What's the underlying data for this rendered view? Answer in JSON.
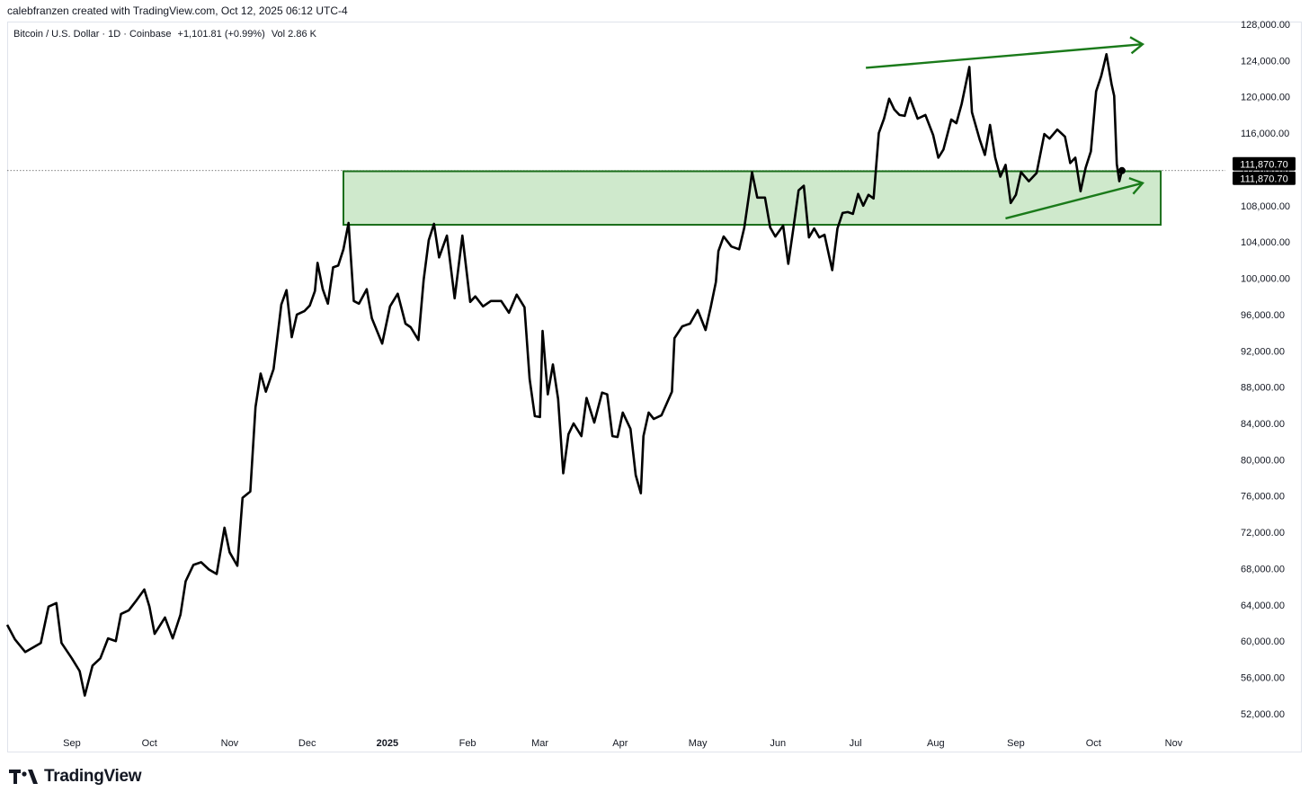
{
  "header": {
    "credit": "calebfranzen created with TradingView.com, Oct 12, 2025 06:12 UTC-4"
  },
  "legend": {
    "symbol": "Bitcoin / U.S. Dollar · 1D · Coinbase",
    "change": "+1,101.81 (+0.99%)",
    "volume": "Vol 2.86 K"
  },
  "branding": {
    "logo_text": "TradingView"
  },
  "colors": {
    "line": "#000000",
    "zone_fill": "#cfe9cc",
    "zone_border": "#1a6e1a",
    "arrow": "#1a7a1a",
    "price_tag": "#000000"
  },
  "chart_data": {
    "type": "line",
    "title": "",
    "xlabel": "",
    "ylabel": "",
    "x_axis_ticks": [
      {
        "label": "Sep",
        "date": "2024-09-01"
      },
      {
        "label": "Oct",
        "date": "2024-10-01"
      },
      {
        "label": "Nov",
        "date": "2024-11-01"
      },
      {
        "label": "Dec",
        "date": "2024-12-01"
      },
      {
        "label": "2025",
        "date": "2025-01-01",
        "bold": true
      },
      {
        "label": "Feb",
        "date": "2025-02-01"
      },
      {
        "label": "Mar",
        "date": "2025-03-01"
      },
      {
        "label": "Apr",
        "date": "2025-04-01"
      },
      {
        "label": "May",
        "date": "2025-05-01"
      },
      {
        "label": "Jun",
        "date": "2025-06-01"
      },
      {
        "label": "Jul",
        "date": "2025-07-01"
      },
      {
        "label": "Aug",
        "date": "2025-08-01"
      },
      {
        "label": "Sep",
        "date": "2025-09-01"
      },
      {
        "label": "Oct",
        "date": "2025-10-01"
      },
      {
        "label": "Nov",
        "date": "2025-11-01"
      }
    ],
    "y_axis_ticks": [
      "52,000.00",
      "56,000.00",
      "60,000.00",
      "64,000.00",
      "68,000.00",
      "72,000.00",
      "76,000.00",
      "80,000.00",
      "84,000.00",
      "88,000.00",
      "92,000.00",
      "96,000.00",
      "100,000.00",
      "104,000.00",
      "108,000.00",
      "112,000.00",
      "116,000.00",
      "120,000.00",
      "124,000.00",
      "128,000.00"
    ],
    "ylim": [
      50800,
      128300
    ],
    "xlim": [
      "2024-08-07",
      "2025-11-21"
    ],
    "current_price": 111870.7,
    "price_labels": [
      "111,870.70",
      "111,870.70"
    ],
    "series": [
      {
        "values": [
          [
            "2024-08-07",
            61800
          ],
          [
            "2024-08-10",
            60200
          ],
          [
            "2024-08-14",
            58800
          ],
          [
            "2024-08-17",
            59300
          ],
          [
            "2024-08-20",
            59800
          ],
          [
            "2024-08-23",
            63800
          ],
          [
            "2024-08-26",
            64200
          ],
          [
            "2024-08-28",
            59800
          ],
          [
            "2024-09-01",
            58100
          ],
          [
            "2024-09-04",
            56700
          ],
          [
            "2024-09-06",
            54000
          ],
          [
            "2024-09-09",
            57300
          ],
          [
            "2024-09-12",
            58100
          ],
          [
            "2024-09-15",
            60300
          ],
          [
            "2024-09-18",
            60000
          ],
          [
            "2024-09-20",
            63000
          ],
          [
            "2024-09-23",
            63400
          ],
          [
            "2024-09-26",
            64500
          ],
          [
            "2024-09-29",
            65700
          ],
          [
            "2024-10-01",
            63800
          ],
          [
            "2024-10-03",
            60800
          ],
          [
            "2024-10-07",
            62600
          ],
          [
            "2024-10-10",
            60300
          ],
          [
            "2024-10-13",
            62900
          ],
          [
            "2024-10-15",
            66600
          ],
          [
            "2024-10-18",
            68400
          ],
          [
            "2024-10-21",
            68700
          ],
          [
            "2024-10-24",
            67900
          ],
          [
            "2024-10-27",
            67400
          ],
          [
            "2024-10-30",
            72500
          ],
          [
            "2024-11-01",
            69800
          ],
          [
            "2024-11-04",
            68300
          ],
          [
            "2024-11-06",
            75800
          ],
          [
            "2024-11-09",
            76500
          ],
          [
            "2024-11-11",
            85800
          ],
          [
            "2024-11-13",
            89500
          ],
          [
            "2024-11-15",
            87500
          ],
          [
            "2024-11-18",
            90000
          ],
          [
            "2024-11-21",
            97100
          ],
          [
            "2024-11-23",
            98700
          ],
          [
            "2024-11-25",
            93500
          ],
          [
            "2024-11-27",
            96000
          ],
          [
            "2024-11-30",
            96400
          ],
          [
            "2024-12-02",
            97000
          ],
          [
            "2024-12-04",
            98600
          ],
          [
            "2024-12-05",
            101700
          ],
          [
            "2024-12-07",
            98800
          ],
          [
            "2024-12-09",
            97200
          ],
          [
            "2024-12-11",
            101200
          ],
          [
            "2024-12-13",
            101400
          ],
          [
            "2024-12-15",
            103200
          ],
          [
            "2024-12-17",
            106100
          ],
          [
            "2024-12-19",
            97500
          ],
          [
            "2024-12-21",
            97200
          ],
          [
            "2024-12-24",
            98800
          ],
          [
            "2024-12-26",
            95600
          ],
          [
            "2024-12-30",
            92800
          ],
          [
            "2025-01-02",
            96900
          ],
          [
            "2025-01-05",
            98300
          ],
          [
            "2025-01-08",
            95000
          ],
          [
            "2025-01-10",
            94600
          ],
          [
            "2025-01-13",
            93200
          ],
          [
            "2025-01-15",
            99800
          ],
          [
            "2025-01-17",
            104200
          ],
          [
            "2025-01-19",
            106000
          ],
          [
            "2025-01-21",
            102300
          ],
          [
            "2025-01-24",
            104700
          ],
          [
            "2025-01-27",
            97800
          ],
          [
            "2025-01-30",
            104700
          ],
          [
            "2025-02-02",
            97400
          ],
          [
            "2025-02-04",
            98000
          ],
          [
            "2025-02-07",
            96900
          ],
          [
            "2025-02-10",
            97500
          ],
          [
            "2025-02-14",
            97500
          ],
          [
            "2025-02-17",
            96200
          ],
          [
            "2025-02-20",
            98200
          ],
          [
            "2025-02-23",
            96800
          ],
          [
            "2025-02-25",
            88900
          ],
          [
            "2025-02-27",
            84800
          ],
          [
            "2025-03-01",
            84700
          ],
          [
            "2025-03-02",
            94200
          ],
          [
            "2025-03-04",
            87200
          ],
          [
            "2025-03-06",
            90500
          ],
          [
            "2025-03-08",
            86700
          ],
          [
            "2025-03-10",
            78500
          ],
          [
            "2025-03-12",
            82800
          ],
          [
            "2025-03-14",
            84000
          ],
          [
            "2025-03-17",
            82600
          ],
          [
            "2025-03-19",
            86800
          ],
          [
            "2025-03-22",
            84100
          ],
          [
            "2025-03-25",
            87400
          ],
          [
            "2025-03-27",
            87200
          ],
          [
            "2025-03-29",
            82600
          ],
          [
            "2025-03-31",
            82500
          ],
          [
            "2025-04-02",
            85200
          ],
          [
            "2025-04-05",
            83400
          ],
          [
            "2025-04-07",
            78300
          ],
          [
            "2025-04-09",
            76300
          ],
          [
            "2025-04-10",
            82600
          ],
          [
            "2025-04-12",
            85200
          ],
          [
            "2025-04-14",
            84500
          ],
          [
            "2025-04-17",
            84900
          ],
          [
            "2025-04-21",
            87500
          ],
          [
            "2025-04-22",
            93400
          ],
          [
            "2025-04-25",
            94700
          ],
          [
            "2025-04-28",
            95000
          ],
          [
            "2025-05-01",
            96500
          ],
          [
            "2025-05-04",
            94300
          ],
          [
            "2025-05-06",
            96800
          ],
          [
            "2025-05-08",
            99600
          ],
          [
            "2025-05-09",
            103000
          ],
          [
            "2025-05-11",
            104600
          ],
          [
            "2025-05-14",
            103500
          ],
          [
            "2025-05-17",
            103200
          ],
          [
            "2025-05-19",
            105600
          ],
          [
            "2025-05-21",
            109600
          ],
          [
            "2025-05-22",
            111700
          ],
          [
            "2025-05-24",
            108900
          ],
          [
            "2025-05-27",
            108900
          ],
          [
            "2025-05-29",
            105600
          ],
          [
            "2025-05-31",
            104600
          ],
          [
            "2025-06-03",
            105800
          ],
          [
            "2025-06-05",
            101600
          ],
          [
            "2025-06-07",
            105600
          ],
          [
            "2025-06-09",
            109700
          ],
          [
            "2025-06-11",
            110200
          ],
          [
            "2025-06-13",
            104500
          ],
          [
            "2025-06-15",
            105500
          ],
          [
            "2025-06-17",
            104500
          ],
          [
            "2025-06-19",
            104800
          ],
          [
            "2025-06-21",
            102200
          ],
          [
            "2025-06-22",
            100900
          ],
          [
            "2025-06-24",
            105500
          ],
          [
            "2025-06-26",
            107200
          ],
          [
            "2025-06-28",
            107300
          ],
          [
            "2025-06-30",
            107100
          ],
          [
            "2025-07-02",
            109300
          ],
          [
            "2025-07-04",
            108000
          ],
          [
            "2025-07-06",
            109200
          ],
          [
            "2025-07-08",
            108800
          ],
          [
            "2025-07-10",
            116000
          ],
          [
            "2025-07-12",
            117600
          ],
          [
            "2025-07-14",
            119800
          ],
          [
            "2025-07-16",
            118600
          ],
          [
            "2025-07-18",
            118000
          ],
          [
            "2025-07-20",
            117900
          ],
          [
            "2025-07-22",
            119900
          ],
          [
            "2025-07-25",
            117600
          ],
          [
            "2025-07-28",
            118000
          ],
          [
            "2025-07-31",
            115800
          ],
          [
            "2025-08-02",
            113300
          ],
          [
            "2025-08-04",
            114200
          ],
          [
            "2025-08-07",
            117500
          ],
          [
            "2025-08-09",
            117100
          ],
          [
            "2025-08-11",
            119200
          ],
          [
            "2025-08-14",
            123300
          ],
          [
            "2025-08-15",
            118300
          ],
          [
            "2025-08-18",
            115300
          ],
          [
            "2025-08-20",
            113600
          ],
          [
            "2025-08-22",
            116900
          ],
          [
            "2025-08-24",
            113300
          ],
          [
            "2025-08-26",
            111200
          ],
          [
            "2025-08-28",
            112500
          ],
          [
            "2025-08-30",
            108300
          ],
          [
            "2025-09-01",
            109200
          ],
          [
            "2025-09-03",
            111700
          ],
          [
            "2025-09-06",
            110700
          ],
          [
            "2025-09-09",
            111600
          ],
          [
            "2025-09-12",
            115900
          ],
          [
            "2025-09-14",
            115400
          ],
          [
            "2025-09-17",
            116400
          ],
          [
            "2025-09-20",
            115600
          ],
          [
            "2025-09-22",
            112700
          ],
          [
            "2025-09-24",
            113300
          ],
          [
            "2025-09-26",
            109600
          ],
          [
            "2025-09-28",
            112200
          ],
          [
            "2025-09-30",
            114000
          ],
          [
            "2025-10-02",
            120600
          ],
          [
            "2025-10-04",
            122300
          ],
          [
            "2025-10-06",
            124700
          ],
          [
            "2025-10-08",
            121400
          ],
          [
            "2025-10-09",
            120100
          ],
          [
            "2025-10-10",
            112600
          ],
          [
            "2025-10-11",
            110700
          ],
          [
            "2025-10-12",
            111870
          ]
        ]
      }
    ],
    "annotations": [
      {
        "type": "zone",
        "y_range": [
          105900,
          111800
        ],
        "x_range": [
          "2024-12-15",
          "2025-10-27"
        ]
      },
      {
        "type": "arrow",
        "from": [
          "2025-07-05",
          123200
        ],
        "to": [
          "2025-10-20",
          125800
        ],
        "label": ""
      },
      {
        "type": "arrow",
        "from": [
          "2025-08-28",
          106600
        ],
        "to": [
          "2025-10-20",
          110500
        ],
        "label": ""
      }
    ],
    "grid": false,
    "legend": "top-left"
  }
}
